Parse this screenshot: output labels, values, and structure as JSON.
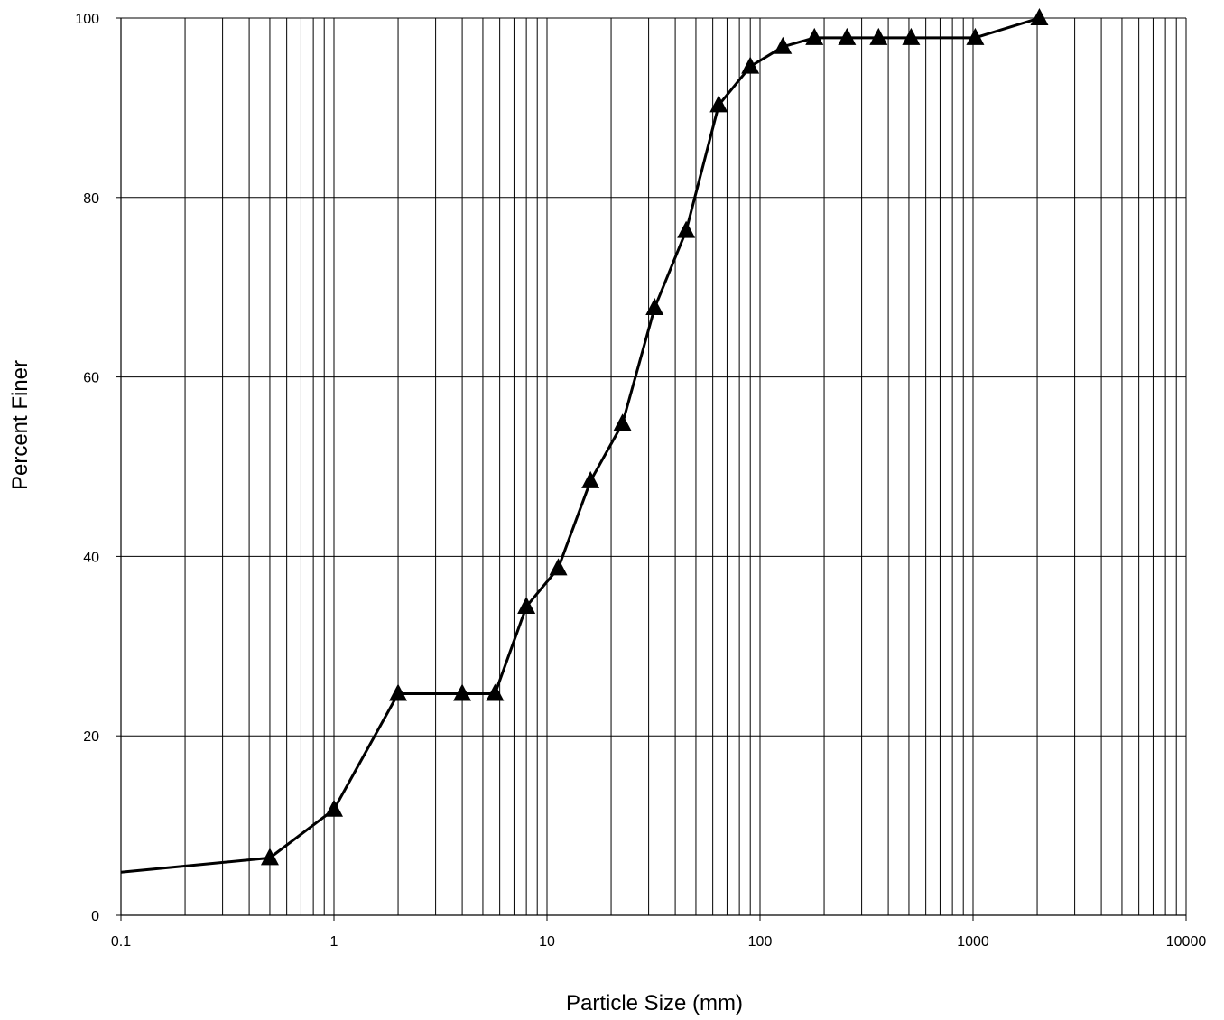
{
  "chart_data": {
    "type": "line",
    "title": "",
    "xlabel": "Particle Size (mm)",
    "ylabel": "Percent Finer",
    "x_scale": "log",
    "xlim": [
      0.1,
      10000
    ],
    "ylim": [
      0,
      100
    ],
    "x_ticks": [
      0.1,
      1,
      10,
      100,
      1000,
      10000
    ],
    "x_tick_labels": [
      "0.1",
      "1",
      "10",
      "100",
      "1000",
      "10000"
    ],
    "y_ticks": [
      0,
      20,
      40,
      60,
      80,
      100
    ],
    "y_tick_labels": [
      "0",
      "20",
      "40",
      "60",
      "80",
      "100"
    ],
    "grid": true,
    "line_color": "#000000",
    "marker": "triangle",
    "series": [
      {
        "x": [
          0.1,
          0.5,
          1,
          2,
          4,
          5.7,
          8,
          11.3,
          16,
          22.6,
          32,
          45,
          64,
          90,
          128,
          180,
          256,
          360,
          512,
          1024,
          2048
        ],
        "y": [
          4.8,
          6.4,
          11.8,
          24.7,
          24.7,
          24.7,
          34.4,
          38.7,
          48.4,
          54.8,
          67.7,
          76.3,
          90.3,
          94.6,
          96.8,
          97.8,
          97.8,
          97.8,
          97.8,
          97.8,
          100
        ],
        "marker_start_index": 1
      }
    ]
  }
}
